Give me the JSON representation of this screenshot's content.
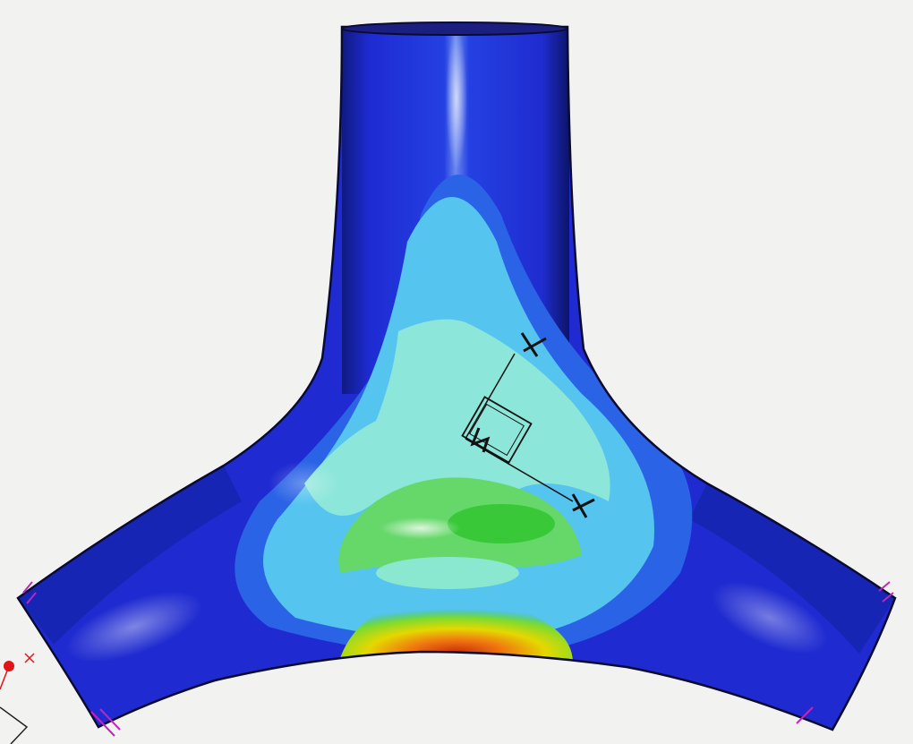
{
  "viewport": {
    "background": "#f2f3f1",
    "model": "y-branch-pipe",
    "result_plot": "contour-stress"
  },
  "colors": {
    "low": "#1f2fd6",
    "low_mid": "#2a64e8",
    "mid": "#56c8f0",
    "mid_high": "#88e8d8",
    "high": "#46cf38",
    "peak_yellow": "#e0e000",
    "peak_orange": "#f07a10",
    "peak_red": "#d02a08",
    "outline": "#0b0b30",
    "cut_marker": "#c025c0",
    "triad_red": "#e01515"
  },
  "icons": {
    "section_marker": "section-cut-marker-icon",
    "triad": "coordinate-triad-icon",
    "lightning": "lightning-icon"
  }
}
